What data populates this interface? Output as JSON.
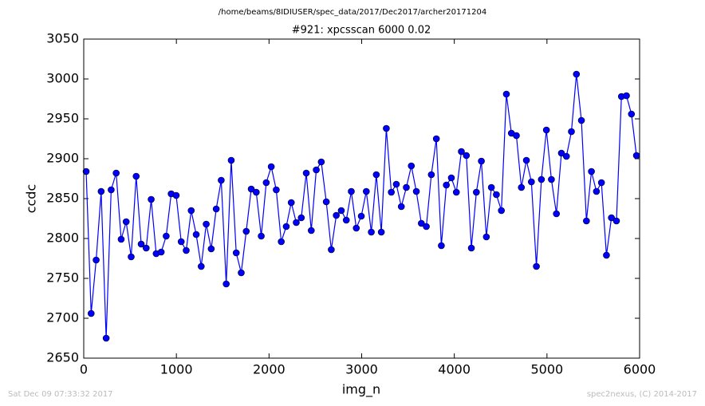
{
  "chart_data": {
    "type": "line",
    "suptitle": "/home/beams/8IDIUSER/spec_data/2017/Dec2017/archer20171204",
    "title": "#921: xpcsscan 6000 0.02",
    "xlabel": "img_n",
    "ylabel": "ccdc",
    "footer_left": "Sat Dec 09 07:33:32 2017",
    "footer_right": "spec2nexus, (C) 2014-2017",
    "xlim": [
      0,
      6000
    ],
    "xticks": [
      0,
      1000,
      2000,
      3000,
      4000,
      5000,
      6000
    ],
    "ylim": [
      2650,
      3050
    ],
    "yticks": [
      2650,
      2700,
      2750,
      2800,
      2850,
      2900,
      2950,
      3000,
      3050
    ],
    "x": [
      26,
      80,
      134,
      188,
      242,
      296,
      350,
      404,
      458,
      512,
      566,
      620,
      674,
      728,
      782,
      836,
      890,
      944,
      998,
      1052,
      1106,
      1160,
      1214,
      1268,
      1322,
      1376,
      1430,
      1484,
      1538,
      1592,
      1646,
      1700,
      1754,
      1808,
      1862,
      1916,
      1970,
      2024,
      2078,
      2132,
      2186,
      2240,
      2294,
      2348,
      2402,
      2456,
      2510,
      2564,
      2618,
      2672,
      2726,
      2780,
      2834,
      2888,
      2942,
      2996,
      3050,
      3104,
      3158,
      3212,
      3266,
      3320,
      3374,
      3428,
      3482,
      3536,
      3590,
      3644,
      3698,
      3752,
      3806,
      3860,
      3914,
      3968,
      4022,
      4076,
      4130,
      4184,
      4238,
      4292,
      4346,
      4400,
      4454,
      4508,
      4562,
      4616,
      4670,
      4724,
      4778,
      4832,
      4886,
      4940,
      4994,
      5048,
      5102,
      5156,
      5210,
      5264,
      5318,
      5372,
      5426,
      5480,
      5534,
      5588,
      5642,
      5696,
      5750,
      5804,
      5858,
      5912,
      5966
    ],
    "series": [
      {
        "name": "ccdc",
        "color": "#0000ff",
        "values": [
          2884,
          2706,
          2773,
          2859,
          2675,
          2861,
          2882,
          2799,
          2821,
          2777,
          2878,
          2793,
          2788,
          2849,
          2781,
          2783,
          2803,
          2856,
          2854,
          2796,
          2785,
          2835,
          2805,
          2765,
          2818,
          2787,
          2837,
          2873,
          2743,
          2898,
          2782,
          2757,
          2809,
          2862,
          2858,
          2803,
          2870,
          2890,
          2861,
          2796,
          2815,
          2845,
          2820,
          2826,
          2882,
          2810,
          2886,
          2896,
          2846,
          2786,
          2829,
          2835,
          2823,
          2859,
          2813,
          2828,
          2859,
          2808,
          2880,
          2808,
          2938,
          2858,
          2868,
          2840,
          2864,
          2891,
          2859,
          2819,
          2815,
          2880,
          2925,
          2791,
          2867,
          2876,
          2858,
          2909,
          2904,
          2788,
          2858,
          2897,
          2802,
          2864,
          2855,
          2835,
          2981,
          2932,
          2929,
          2864,
          2898,
          2871,
          2765,
          2874,
          2936,
          2874,
          2831,
          2907,
          2903,
          2934,
          3006,
          2948,
          2822,
          2884,
          2859,
          2870,
          2779,
          2826,
          2822,
          2978,
          2979,
          2956,
          2904
        ]
      }
    ]
  }
}
